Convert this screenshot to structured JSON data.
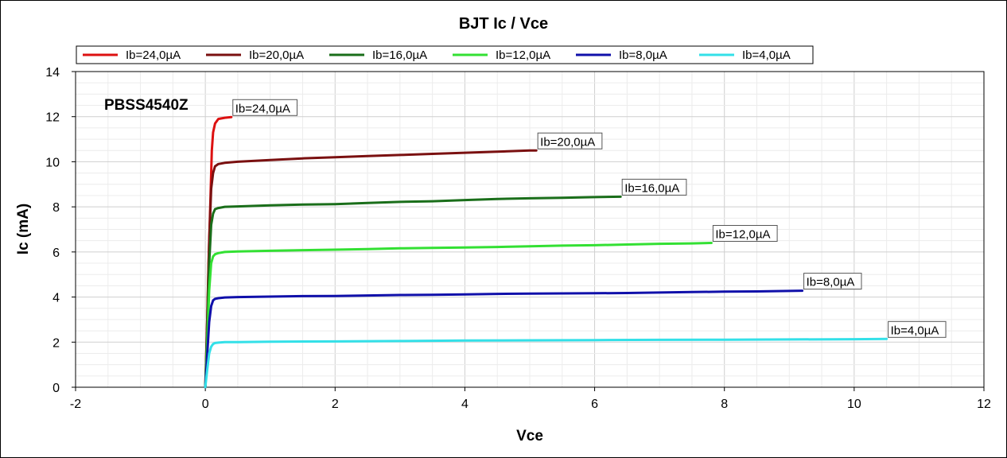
{
  "chart_data": {
    "type": "line",
    "title": "BJT Ic / Vce",
    "xlabel": "Vce",
    "ylabel": "Ic (mA)",
    "xlim": [
      -2,
      12
    ],
    "ylim": [
      0,
      14
    ],
    "xticks": [
      "-2",
      "0",
      "2",
      "4",
      "6",
      "8",
      "10",
      "12"
    ],
    "yticks": [
      "0",
      "2",
      "4",
      "6",
      "8",
      "10",
      "12",
      "14"
    ],
    "grid": true,
    "legend_position": "top",
    "annotation": "PBSS4540Z",
    "series": [
      {
        "name": "Ib=24,0µA",
        "label": "Ib=24,0µA",
        "color": "#dd1111",
        "x": [
          0,
          0.02,
          0.05,
          0.08,
          0.1,
          0.12,
          0.15,
          0.2,
          0.3,
          0.4
        ],
        "y": [
          0,
          2.0,
          5.5,
          8.5,
          10.5,
          11.3,
          11.7,
          11.9,
          11.95,
          11.98
        ]
      },
      {
        "name": "Ib=20,0µA",
        "label": "Ib=20,0µA",
        "color": "#7a1010",
        "x": [
          0,
          0.03,
          0.06,
          0.09,
          0.12,
          0.15,
          0.2,
          0.3,
          0.5,
          1.0,
          1.5,
          2.0,
          2.5,
          3.0,
          3.5,
          4.0,
          4.5,
          5.0,
          5.1
        ],
        "y": [
          0,
          3.0,
          6.5,
          8.8,
          9.5,
          9.8,
          9.9,
          9.95,
          10.0,
          10.08,
          10.15,
          10.2,
          10.25,
          10.3,
          10.35,
          10.4,
          10.45,
          10.5,
          10.5
        ]
      },
      {
        "name": "Ib=16,0µA",
        "label": "Ib=16,0µA",
        "color": "#1a6e1a",
        "x": [
          0,
          0.03,
          0.06,
          0.09,
          0.12,
          0.15,
          0.2,
          0.3,
          0.5,
          1.0,
          1.5,
          2.0,
          2.5,
          3.0,
          3.5,
          4.0,
          4.5,
          5.0,
          5.5,
          6.0,
          6.4
        ],
        "y": [
          0,
          2.5,
          5.5,
          7.2,
          7.7,
          7.9,
          7.95,
          8.0,
          8.02,
          8.07,
          8.1,
          8.12,
          8.17,
          8.22,
          8.25,
          8.3,
          8.35,
          8.38,
          8.4,
          8.43,
          8.45
        ]
      },
      {
        "name": "Ib=12,0µA",
        "label": "Ib=12,0µA",
        "color": "#33e033",
        "x": [
          0,
          0.03,
          0.06,
          0.09,
          0.12,
          0.15,
          0.2,
          0.3,
          0.5,
          1.0,
          1.5,
          2.0,
          2.5,
          3.0,
          3.5,
          4.0,
          4.5,
          5.0,
          5.5,
          6.0,
          6.5,
          7.0,
          7.5,
          7.8
        ],
        "y": [
          0,
          2.0,
          4.3,
          5.5,
          5.8,
          5.9,
          5.95,
          6.0,
          6.02,
          6.05,
          6.08,
          6.1,
          6.13,
          6.16,
          6.18,
          6.2,
          6.22,
          6.25,
          6.28,
          6.3,
          6.33,
          6.36,
          6.38,
          6.4
        ]
      },
      {
        "name": "Ib=8,0µA",
        "label": "Ib=8,0µA",
        "color": "#1010aa",
        "x": [
          0,
          0.03,
          0.06,
          0.09,
          0.12,
          0.15,
          0.2,
          0.3,
          0.5,
          1.0,
          1.5,
          2.0,
          2.5,
          3.0,
          3.5,
          4.0,
          4.5,
          5.0,
          5.5,
          6.0,
          6.5,
          7.0,
          7.5,
          8.0,
          8.5,
          9.0,
          9.2
        ],
        "y": [
          0,
          1.5,
          2.9,
          3.6,
          3.85,
          3.92,
          3.95,
          3.98,
          4.0,
          4.02,
          4.04,
          4.05,
          4.07,
          4.09,
          4.1,
          4.12,
          4.14,
          4.15,
          4.16,
          4.17,
          4.18,
          4.2,
          4.22,
          4.24,
          4.25,
          4.27,
          4.28
        ]
      },
      {
        "name": "Ib=4,0µA",
        "label": "Ib=4,0µA",
        "color": "#33e0e8",
        "x": [
          0,
          0.03,
          0.06,
          0.09,
          0.12,
          0.15,
          0.2,
          0.3,
          0.5,
          1.0,
          2.0,
          3.0,
          4.0,
          5.0,
          6.0,
          7.0,
          8.0,
          9.0,
          10.0,
          10.5
        ],
        "y": [
          0,
          0.8,
          1.5,
          1.8,
          1.92,
          1.96,
          1.98,
          2.0,
          2.0,
          2.02,
          2.03,
          2.05,
          2.07,
          2.08,
          2.09,
          2.1,
          2.11,
          2.12,
          2.13,
          2.14
        ]
      }
    ]
  }
}
